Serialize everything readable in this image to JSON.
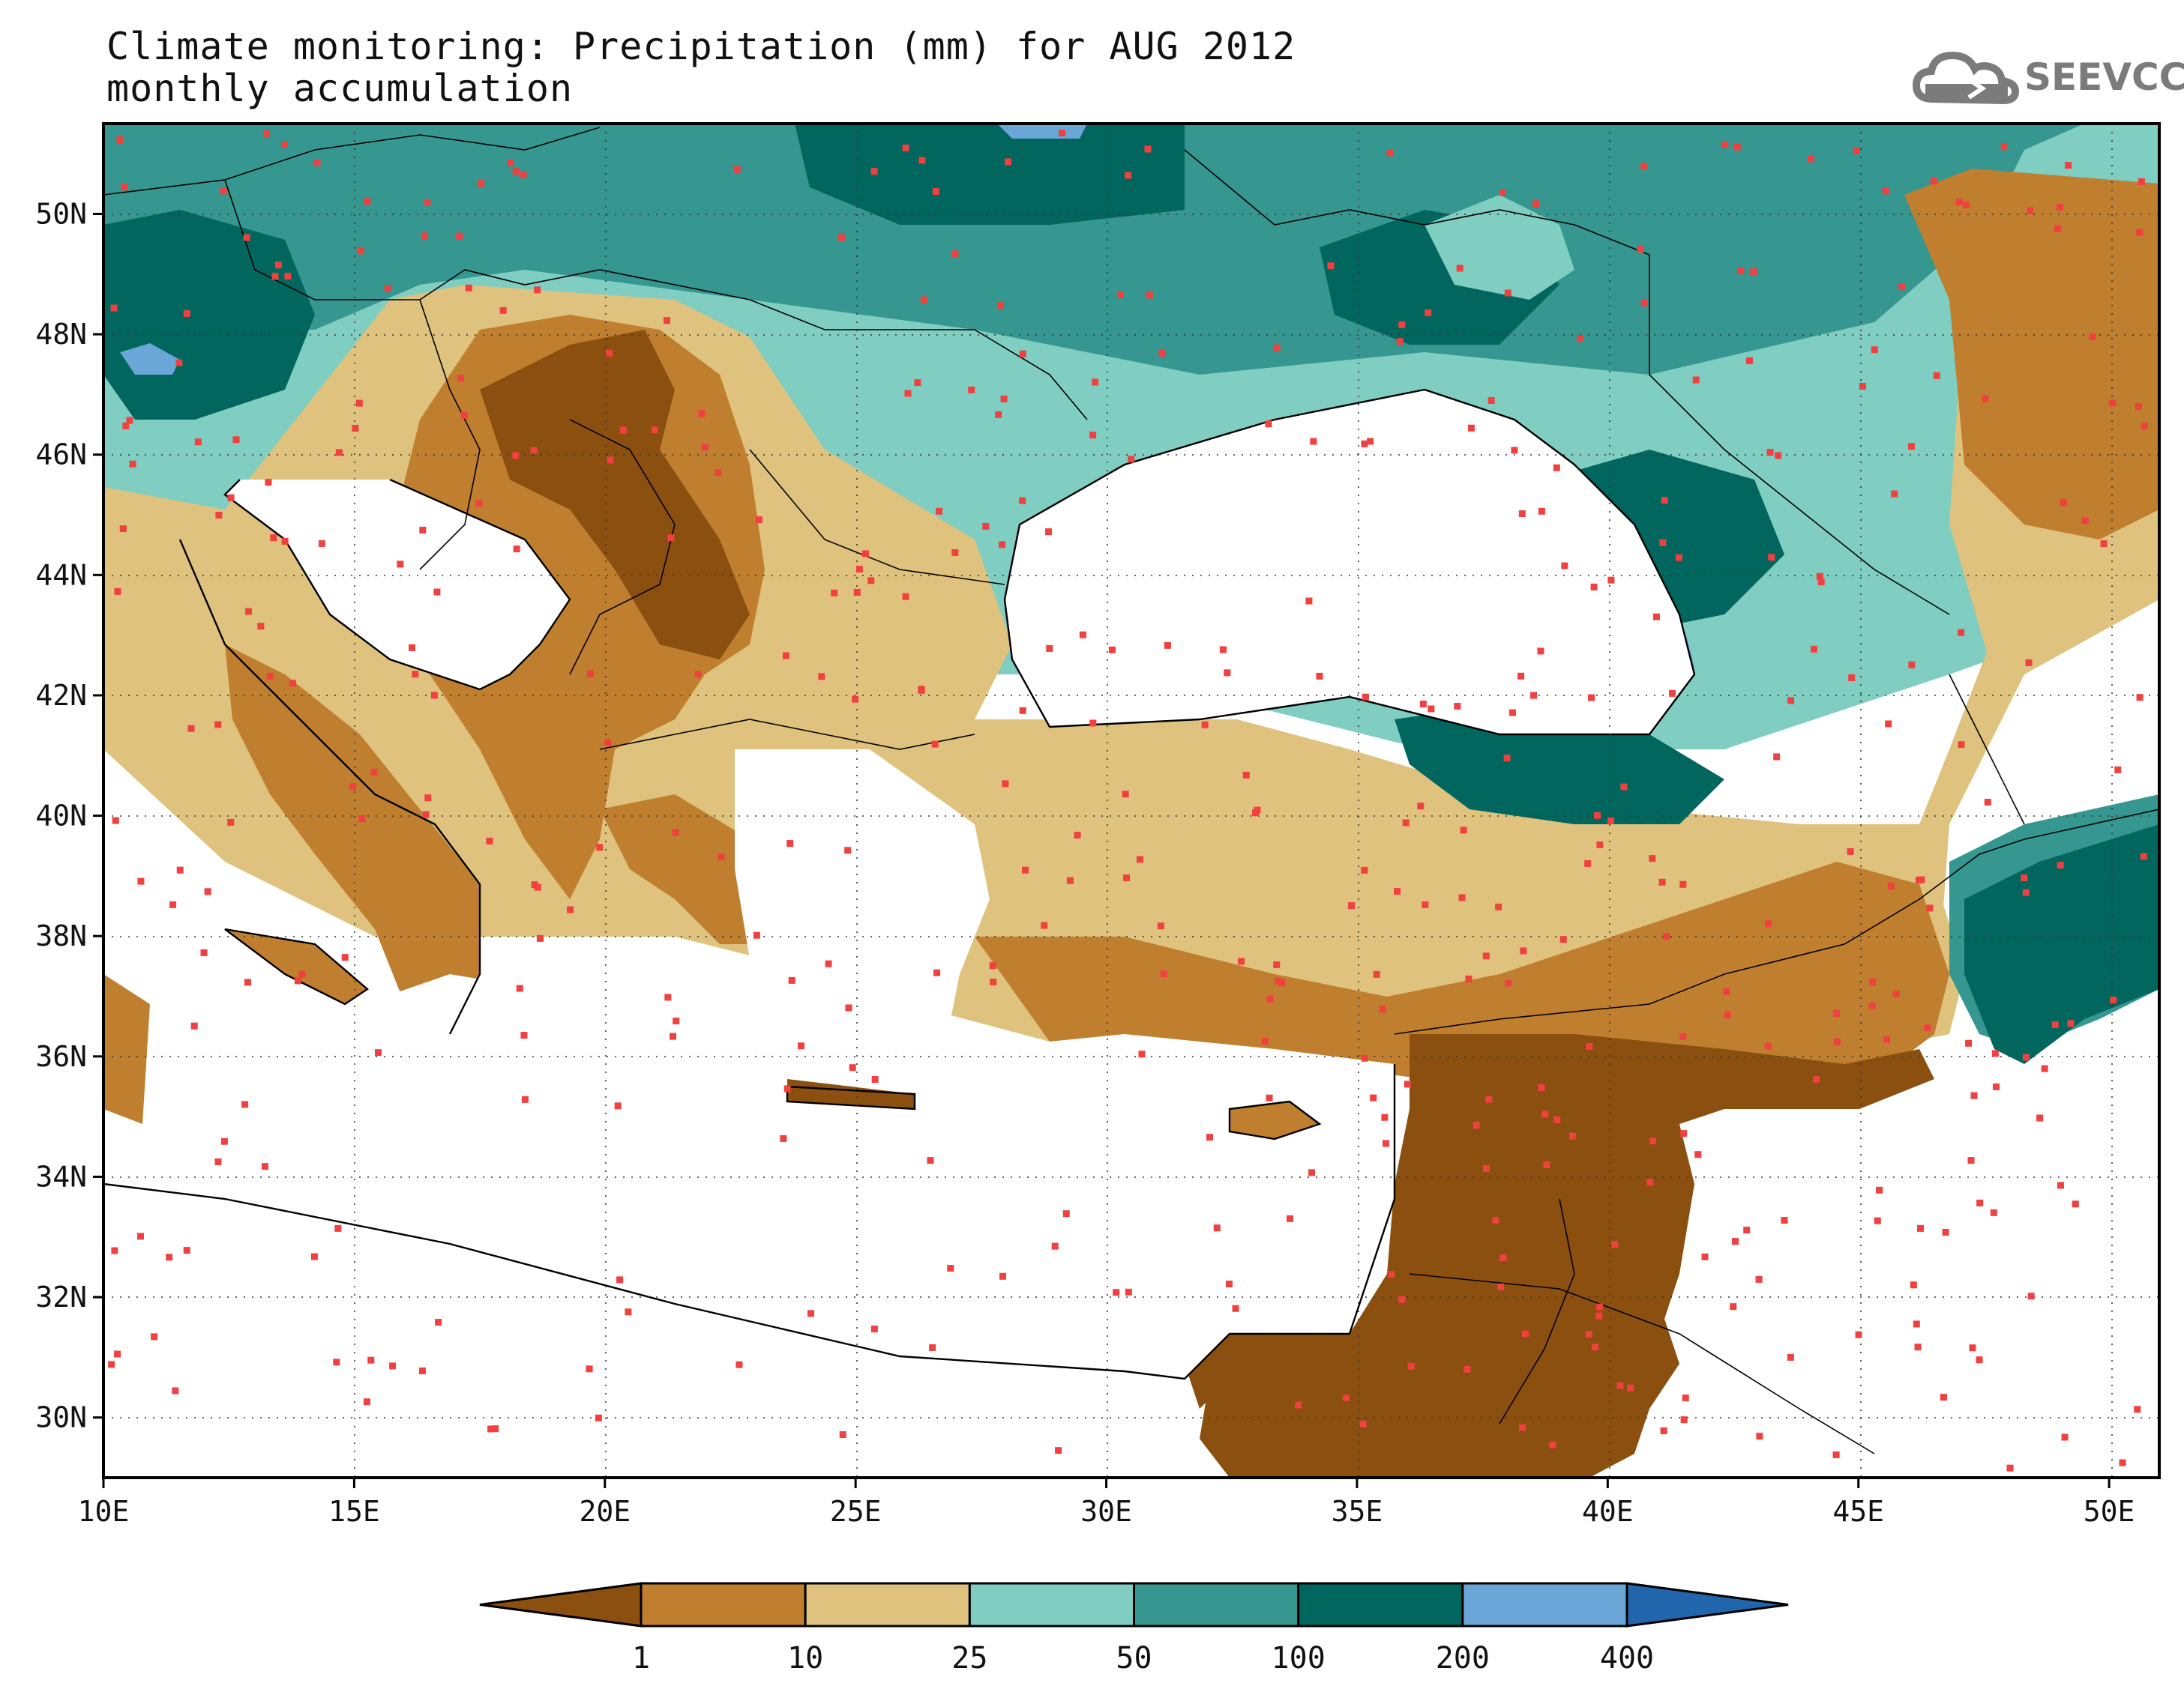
{
  "title": {
    "line1": "Climate monitoring: Precipitation (mm) for AUG 2012",
    "line2": "monthly accumulation"
  },
  "logo": {
    "text": "SEEVCCC",
    "icon": "cloud-icon",
    "color": "#7b7b7b"
  },
  "axes": {
    "x_ticks": [
      "10E",
      "15E",
      "20E",
      "25E",
      "30E",
      "35E",
      "40E",
      "45E",
      "50E"
    ],
    "y_ticks": [
      "30N",
      "32N",
      "34N",
      "36N",
      "38N",
      "40N",
      "42N",
      "44N",
      "46N",
      "48N",
      "50N"
    ],
    "lon_range": [
      10,
      51
    ],
    "lat_range": [
      29,
      51.5
    ],
    "grid": "dotted"
  },
  "colorbar": {
    "labels": [
      "1",
      "10",
      "25",
      "50",
      "100",
      "200",
      "400"
    ],
    "colors": [
      "#8b4f10",
      "#bf7f2f",
      "#dfc27d",
      "#80cdc1",
      "#35978f",
      "#01665e",
      "#6aa6d6",
      "#2166ac"
    ],
    "extend": "both"
  },
  "legend_colors": {
    "lt1": "#8b4f10",
    "1_10": "#bf7f2f",
    "10_25": "#dfc27d",
    "25_50": "#80cdc1",
    "50_100": "#35978f",
    "100_200": "#01665e",
    "200_400": "#6aa6d6",
    "gt400": "#2166ac"
  },
  "station_color": "#f04040"
}
